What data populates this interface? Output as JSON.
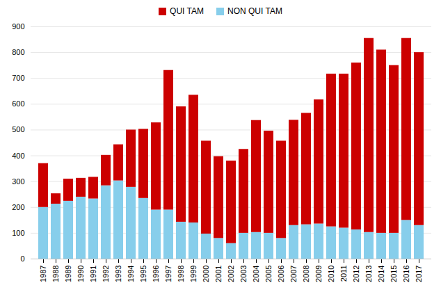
{
  "chart_data": {
    "type": "bar",
    "stacked": true,
    "categories": [
      "1987",
      "1988",
      "1989",
      "1990",
      "1991",
      "1992",
      "1993",
      "1994",
      "1995",
      "1996",
      "1997",
      "1998",
      "1999",
      "2000",
      "2001",
      "2002",
      "2003",
      "2004",
      "2005",
      "2006",
      "2007",
      "2008",
      "2009",
      "2010",
      "2011",
      "2012",
      "2013",
      "2014",
      "2015",
      "2016",
      "2017"
    ],
    "series": [
      {
        "name": "NON QUI TAM",
        "color": "#87CEEB",
        "values": [
          200,
          213,
          224,
          240,
          233,
          284,
          303,
          278,
          235,
          190,
          190,
          143,
          140,
          97,
          80,
          60,
          100,
          103,
          100,
          80,
          130,
          133,
          136,
          125,
          120,
          113,
          103,
          100,
          100,
          150,
          130
        ]
      },
      {
        "name": "QUI TAM",
        "color": "#cc0000",
        "values": [
          170,
          40,
          86,
          73,
          84,
          118,
          140,
          222,
          268,
          338,
          541,
          447,
          495,
          360,
          317,
          320,
          325,
          434,
          396,
          377,
          408,
          432,
          481,
          592,
          597,
          647,
          752,
          710,
          650,
          705,
          670
        ]
      }
    ],
    "ylim": [
      0,
      900
    ],
    "yticks": [
      0,
      100,
      200,
      300,
      400,
      500,
      600,
      700,
      800,
      900
    ],
    "grid": true,
    "legend": "top"
  }
}
